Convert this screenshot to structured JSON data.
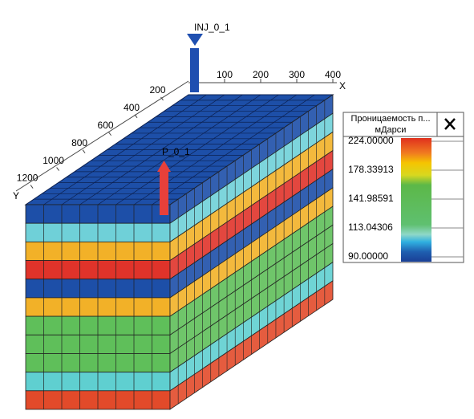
{
  "wells": [
    {
      "label": "INJ_0_1"
    },
    {
      "label": "P_0_1"
    }
  ],
  "x_axis": {
    "label": "X",
    "ticks": [
      100,
      200,
      300,
      400
    ],
    "range": [
      0,
      400
    ]
  },
  "y_axis": {
    "label": "Y",
    "ticks": [
      200,
      400,
      600,
      800,
      1000,
      1200
    ],
    "range": [
      0,
      1250
    ]
  },
  "colorbar": {
    "title": "Проницаемость п...",
    "unit": "мДарси",
    "log": true,
    "range": [
      90,
      224
    ],
    "ticks": [
      {
        "value": 224,
        "label": "224.00000"
      },
      {
        "value": 178.33913,
        "label": "178.33913"
      },
      {
        "value": 141.98591,
        "label": "141.98591"
      },
      {
        "value": 113.04306,
        "label": "113.04306"
      },
      {
        "value": 90,
        "label": "90.00000"
      }
    ]
  }
}
